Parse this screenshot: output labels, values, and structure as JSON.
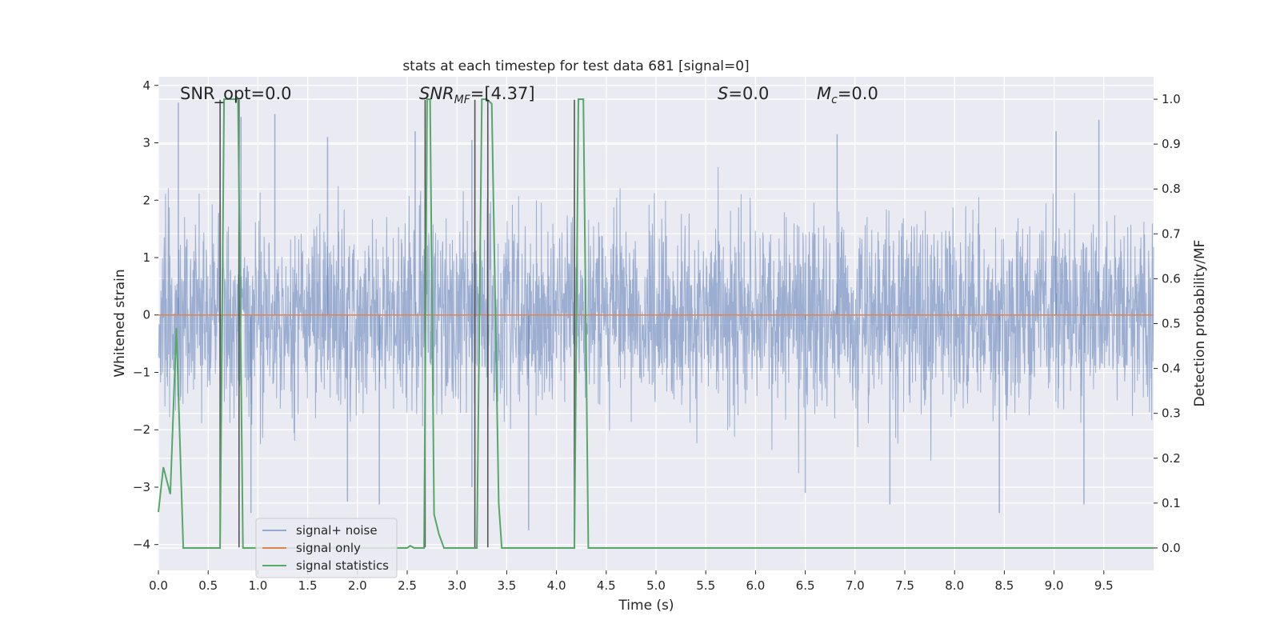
{
  "chart_data": {
    "type": "line",
    "title": "stats at each timestep for test data 681 [signal=0]",
    "xlabel": "Time (s)",
    "ylabel_left": "Whitened strain",
    "ylabel_right": "Detection probability/MF",
    "xlim": [
      0,
      10
    ],
    "ylim_left": [
      -4.45,
      4.15
    ],
    "ylim_right": [
      -0.05,
      1.05
    ],
    "x_ticks": [
      "0.0",
      "0.5",
      "1.0",
      "1.5",
      "2.0",
      "2.5",
      "3.0",
      "3.5",
      "4.0",
      "4.5",
      "5.0",
      "5.5",
      "6.0",
      "6.5",
      "7.0",
      "7.5",
      "8.0",
      "8.5",
      "9.0",
      "9.5"
    ],
    "y_left_ticks": [
      "−4",
      "−3",
      "−2",
      "−1",
      "0",
      "1",
      "2",
      "3",
      "4"
    ],
    "y_right_ticks": [
      "0.0",
      "0.1",
      "0.2",
      "0.3",
      "0.4",
      "0.5",
      "0.6",
      "0.7",
      "0.8",
      "0.9",
      "1.0"
    ],
    "grid": true,
    "legend_position": "lower left",
    "annotations": {
      "snr_opt": "SNR_opt=0.0",
      "snr_mf_prefix": "SNR",
      "snr_mf_sub": "MF",
      "snr_mf_value": "=[4.37]",
      "s_symbol": "S",
      "s_value": "=0.0",
      "mc_symbol": "M",
      "mc_sub": "c",
      "mc_value": "=0.0"
    },
    "colors": {
      "noise": "#4c72b0",
      "signal": "#dd8452",
      "statistics": "#55a868",
      "background": "#eaeaf2",
      "marker_lines": "#555555"
    },
    "series": [
      {
        "name": "signal+ noise",
        "axis": "left",
        "description_kind": "dense-noise",
        "typical_band": [
          -1.7,
          1.45
        ],
        "extreme_peaks": [
          {
            "x": 0.2,
            "y": 3.7
          },
          {
            "x": 0.83,
            "y": 3.45
          },
          {
            "x": 1.17,
            "y": 3.5
          },
          {
            "x": 1.7,
            "y": 3.1
          },
          {
            "x": 2.58,
            "y": 3.2
          },
          {
            "x": 6.82,
            "y": 3.15
          },
          {
            "x": 9.02,
            "y": 3.2
          },
          {
            "x": 9.45,
            "y": 3.4
          },
          {
            "x": 3.15,
            "y": 3.05
          }
        ],
        "extreme_troughs": [
          {
            "x": 0.93,
            "y": -3.45
          },
          {
            "x": 3.72,
            "y": -3.75
          },
          {
            "x": 8.45,
            "y": -3.45
          },
          {
            "x": 2.22,
            "y": -3.3
          },
          {
            "x": 1.9,
            "y": -3.25
          },
          {
            "x": 7.35,
            "y": -3.3
          },
          {
            "x": 9.3,
            "y": -3.3
          },
          {
            "x": 3.15,
            "y": -3.0
          },
          {
            "x": 6.5,
            "y": -3.1
          }
        ]
      },
      {
        "name": "signal only",
        "axis": "left",
        "x": [
          0,
          10
        ],
        "y": [
          0,
          0
        ]
      },
      {
        "name": "signal statistics",
        "axis": "right",
        "x": [
          0.0,
          0.05,
          0.12,
          0.18,
          0.25,
          0.62,
          0.66,
          0.7,
          0.73,
          0.77,
          0.8,
          0.85,
          2.5,
          2.53,
          2.57,
          2.62,
          2.67,
          2.7,
          2.73,
          2.77,
          2.82,
          2.87,
          2.92,
          3.17,
          3.2,
          3.25,
          3.3,
          3.35,
          3.42,
          3.45,
          4.18,
          4.22,
          4.27,
          4.32,
          10.0
        ],
        "y": [
          0.08,
          0.18,
          0.12,
          0.49,
          0.0,
          0.0,
          1.0,
          1.0,
          1.0,
          1.0,
          1.0,
          0.0,
          0.0,
          0.005,
          0.0,
          0.0,
          0.0,
          1.0,
          1.0,
          0.075,
          0.03,
          0.0,
          0.0,
          0.0,
          0.0,
          1.0,
          1.0,
          0.99,
          0.1,
          0.0,
          0.0,
          1.0,
          1.0,
          0.0,
          0.0
        ]
      }
    ],
    "marker_lines_x": [
      0.62,
      0.81,
      2.68,
      3.18,
      3.31,
      4.18
    ],
    "marker_lines_ylim": [
      -4.05,
      3.75
    ]
  }
}
